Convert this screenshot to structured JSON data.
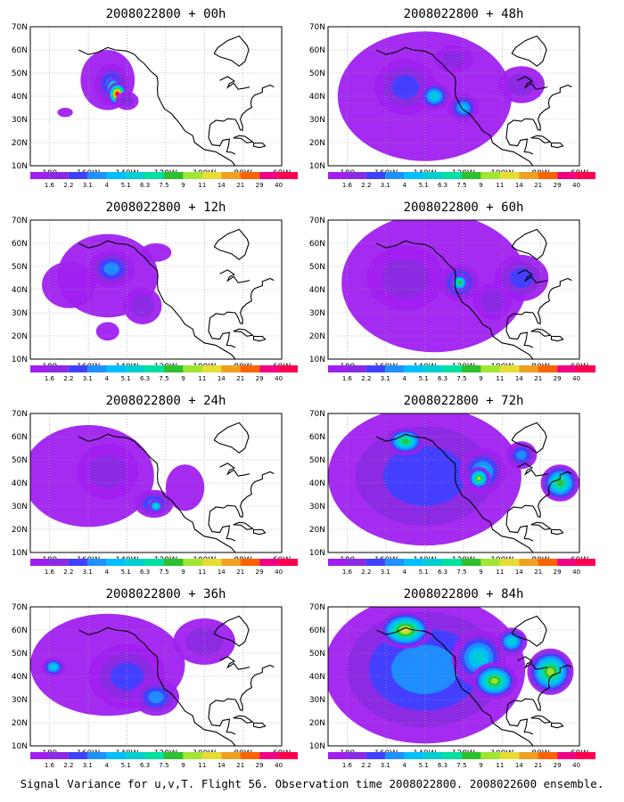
{
  "figure_caption": "Signal Variance for u,v,T. Flight 56. Observation time 2008022800. 2008022600 ensemble.",
  "axes": {
    "lat_labels": [
      "10N",
      "20N",
      "30N",
      "40N",
      "50N",
      "60N",
      "70N"
    ],
    "lon_labels": [
      "180",
      "160W",
      "140W",
      "120W",
      "100W",
      "80W",
      "60W"
    ]
  },
  "colorbar": {
    "levels": [
      "1.6",
      "2.2",
      "3.1",
      "4",
      "5.1",
      "6.3",
      "7.5",
      "9",
      "11",
      "14",
      "21",
      "29",
      "40"
    ],
    "colors": [
      "#a020f0",
      "#8a2be2",
      "#4040ff",
      "#1e90ff",
      "#00bfff",
      "#00ced1",
      "#00e0a0",
      "#2ec02e",
      "#a0e632",
      "#e6dc32",
      "#f0a020",
      "#fa6400",
      "#f00082",
      "#ff0050"
    ]
  },
  "panels": [
    {
      "title": "2008022800 + 00h",
      "lead_h": 0
    },
    {
      "title": "2008022800 + 48h",
      "lead_h": 48
    },
    {
      "title": "2008022800 + 12h",
      "lead_h": 12
    },
    {
      "title": "2008022800 + 60h",
      "lead_h": 60
    },
    {
      "title": "2008022800 + 24h",
      "lead_h": 24
    },
    {
      "title": "2008022800 + 72h",
      "lead_h": 72
    },
    {
      "title": "2008022800 + 36h",
      "lead_h": 36
    },
    {
      "title": "2008022800 + 84h",
      "lead_h": 84
    }
  ]
}
